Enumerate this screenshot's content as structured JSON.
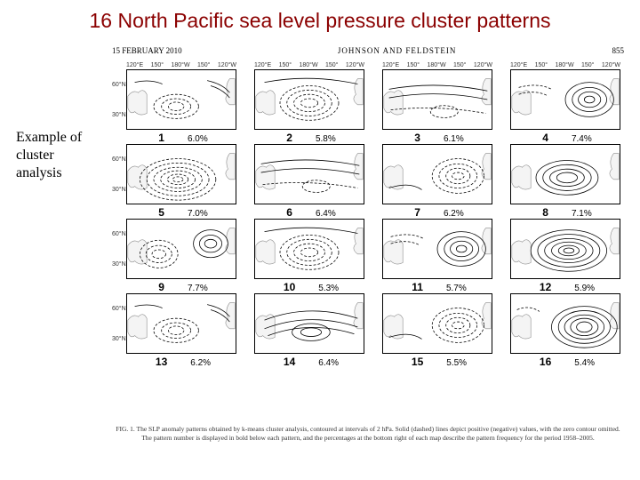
{
  "title": "16 North Pacific sea level pressure cluster patterns",
  "header": {
    "date": "15 FEBRUARY 2010",
    "authors": "JOHNSON AND FELDSTEIN",
    "page": "855"
  },
  "aside": [
    "Example of",
    "cluster",
    "analysis"
  ],
  "lon_ticks": [
    "120°E",
    "150°",
    "180°W",
    "150°",
    "120°W"
  ],
  "lat_ticks": [
    "60°N",
    "30°N"
  ],
  "panels": [
    {
      "num": "1",
      "pct": "6.0%",
      "type": "dip-low-center"
    },
    {
      "num": "2",
      "pct": "5.8%",
      "type": "low-center"
    },
    {
      "num": "3",
      "pct": "6.1%",
      "type": "zonal-weak"
    },
    {
      "num": "4",
      "pct": "7.4%",
      "type": "high-east"
    },
    {
      "num": "5",
      "pct": "7.0%",
      "type": "low-strong"
    },
    {
      "num": "6",
      "pct": "6.4%",
      "type": "zonal-weak"
    },
    {
      "num": "7",
      "pct": "6.2%",
      "type": "low-east"
    },
    {
      "num": "8",
      "pct": "7.1%",
      "type": "high-center"
    },
    {
      "num": "9",
      "pct": "7.7%",
      "type": "dip-lowwest-higheast"
    },
    {
      "num": "10",
      "pct": "5.3%",
      "type": "low-center"
    },
    {
      "num": "11",
      "pct": "5.7%",
      "type": "high-east"
    },
    {
      "num": "12",
      "pct": "5.9%",
      "type": "high-center-strong"
    },
    {
      "num": "13",
      "pct": "6.2%",
      "type": "dip-low-center"
    },
    {
      "num": "14",
      "pct": "6.4%",
      "type": "high-broad"
    },
    {
      "num": "15",
      "pct": "5.5%",
      "type": "low-east"
    },
    {
      "num": "16",
      "pct": "5.4%",
      "type": "high-strong-east"
    }
  ],
  "caption": "FIG. 1. The SLP anomaly patterns obtained by k-means cluster analysis, contoured at intervals of 2 hPa. Solid (dashed) lines depict positive (negative) values, with the zero contour omitted. The pattern number is displayed in bold below each pattern, and the percentages at the bottom right of each map describe the pattern frequency for the period 1958–2005.",
  "style": {
    "title_color": "#8b0000",
    "contour_solid": "#000000",
    "contour_dash": "#000000",
    "coast_color": "#888888",
    "panel_border": "#000000",
    "background": "#ffffff"
  }
}
